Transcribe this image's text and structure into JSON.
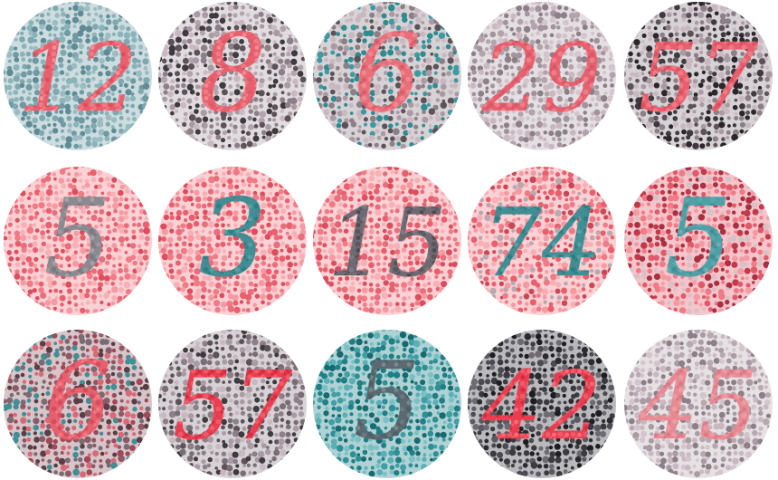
{
  "plates": [
    {
      "number": "12",
      "bg": [
        "#6f9aa3",
        "#7fa8b0",
        "#8ab3ba",
        "#5f8b95",
        "#9bbcc2"
      ],
      "fg": [
        "#e8606e",
        "#f07a85",
        "#dc4e5e",
        "#f2909a"
      ]
    },
    {
      "number": "8",
      "bg": [
        "#a99aa3",
        "#8c7f88",
        "#c9b8c0",
        "#5c5258",
        "#b3a3ac",
        "#3f3a3f"
      ],
      "fg": [
        "#e8606e",
        "#f07a85",
        "#dc5a66",
        "#ee8a92"
      ]
    },
    {
      "number": "6",
      "bg": [
        "#8c7f88",
        "#a99aa3",
        "#5c5258",
        "#2e8b8f",
        "#c9b8c0",
        "#3f9aa0"
      ],
      "fg": [
        "#e86e78",
        "#f0868f",
        "#d85a66"
      ]
    },
    {
      "number": "29",
      "bg": [
        "#b3a3ac",
        "#a2939c",
        "#c9b8c0",
        "#8c7f88",
        "#d4c4cc"
      ],
      "fg": [
        "#e8606e",
        "#ee7f89",
        "#d9566a"
      ]
    },
    {
      "number": "57",
      "bg": [
        "#8c7f88",
        "#a99aa3",
        "#5c5258",
        "#3f3a3f",
        "#c9b8c0",
        "#2a2629"
      ],
      "fg": [
        "#e8606e",
        "#f07a85",
        "#dc4e5e"
      ]
    },
    {
      "number": "5",
      "bg": [
        "#f07a85",
        "#e8606e",
        "#f49aa2",
        "#dc4e5e",
        "#f7b0b6",
        "#e66f7b"
      ],
      "fg": [
        "#8a8a90",
        "#7a7880",
        "#9a9aa0",
        "#a4a0a6"
      ]
    },
    {
      "number": "3",
      "bg": [
        "#f07a85",
        "#e8606e",
        "#f49aa2",
        "#dc4e5e",
        "#f7b0b6",
        "#e66f7b"
      ],
      "fg": [
        "#3f8f95",
        "#2e7f85",
        "#5a9fa4",
        "#4a8890"
      ]
    },
    {
      "number": "15",
      "bg": [
        "#f07a85",
        "#e8606e",
        "#f49aa2",
        "#dc4e5e",
        "#f7b0b6",
        "#e66f7b"
      ],
      "fg": [
        "#6e6a72",
        "#5a565e",
        "#7e7a82",
        "#4e4a52"
      ]
    },
    {
      "number": "74",
      "bg": [
        "#f07a85",
        "#e8606e",
        "#f49aa2",
        "#c94858",
        "#f7b0b6",
        "#b8a8b0"
      ],
      "fg": [
        "#3f8f95",
        "#2e7f85",
        "#5a9fa4",
        "#4a8890"
      ]
    },
    {
      "number": "5",
      "bg": [
        "#e05a6a",
        "#c03a4a",
        "#f07a85",
        "#a83040",
        "#f49aa2",
        "#d8c0c6"
      ],
      "fg": [
        "#4fa0a6",
        "#3f8f95",
        "#6ab0b5",
        "#5aa8ae"
      ]
    },
    {
      "number": "6",
      "bg": [
        "#8c5a66",
        "#a04856",
        "#5a3e46",
        "#3f8f95",
        "#d86a76",
        "#7a6a72"
      ],
      "fg": [
        "#e8606e",
        "#d04e5e",
        "#f07a85"
      ]
    },
    {
      "number": "57",
      "bg": [
        "#8c7f88",
        "#a99aa3",
        "#5c5258",
        "#3f3a3f",
        "#c9b8c0",
        "#7a6e76"
      ],
      "fg": [
        "#e83e50",
        "#f05a68",
        "#d82a3e"
      ]
    },
    {
      "number": "5",
      "bg": [
        "#1f7f85",
        "#2e8f95",
        "#3f9fa4",
        "#5ab0b5",
        "#176a70",
        "#7ac0c4"
      ],
      "fg": [
        "#5a6a70",
        "#4e5e64",
        "#6a7a80",
        "#7a868a"
      ]
    },
    {
      "number": "42",
      "bg": [
        "#3a3a40",
        "#2a2a30",
        "#5a5a62",
        "#4a4a52",
        "#6e6a72",
        "#1e1e22"
      ],
      "fg": [
        "#e83e50",
        "#f05a68",
        "#ff6a78",
        "#d82a3e"
      ]
    },
    {
      "number": "45",
      "bg": [
        "#b8a8b0",
        "#a99aa3",
        "#c9b8c0",
        "#8c7f88",
        "#d4c4cc"
      ],
      "fg": [
        "#e88a94",
        "#ee9aa2",
        "#d87a86"
      ]
    }
  ]
}
